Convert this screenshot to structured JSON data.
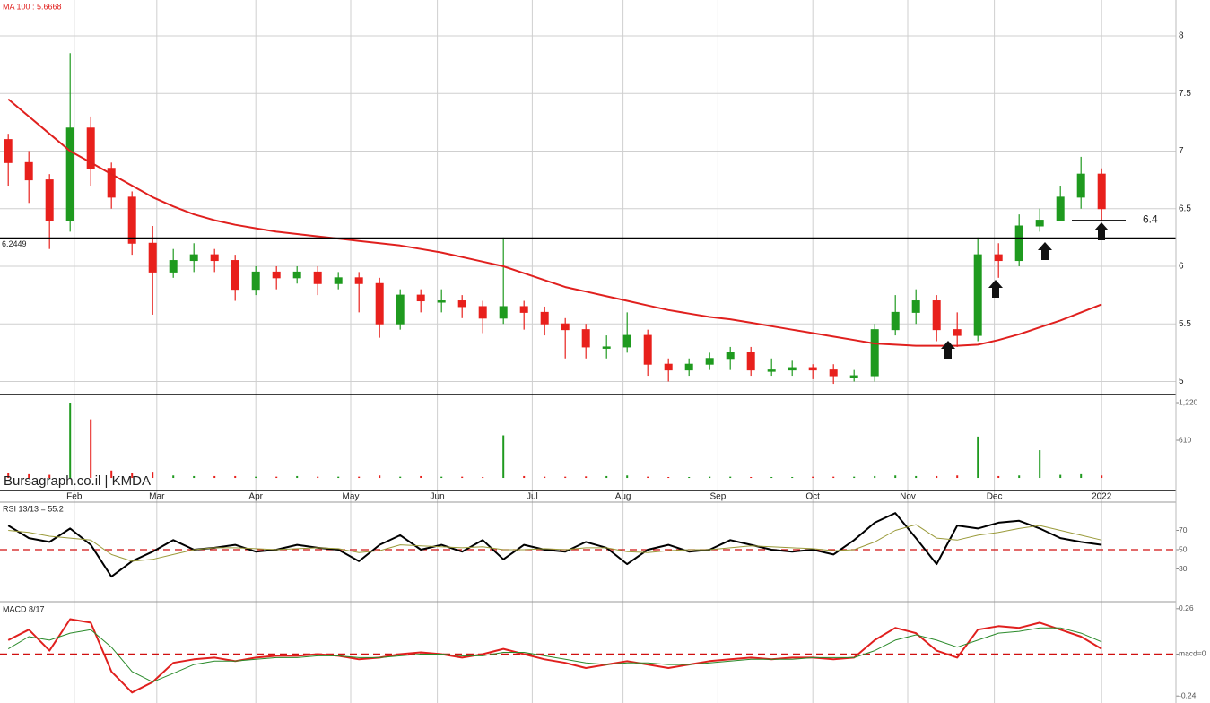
{
  "chart_data": [
    {
      "type": "candlestick",
      "title": "MA 100 : 5.6668",
      "x": [
        2,
        7,
        12,
        17,
        22,
        27,
        32,
        37,
        42,
        47,
        52,
        57,
        62,
        67,
        72,
        77,
        82,
        87,
        92,
        97,
        102,
        107,
        112,
        117,
        122,
        127,
        132,
        137,
        142,
        147,
        152,
        157,
        162,
        167,
        172,
        177,
        182,
        187,
        192,
        197,
        202,
        207,
        212,
        217,
        222,
        227,
        232,
        237,
        242,
        247,
        252,
        257,
        262,
        267
      ],
      "open": [
        7.1,
        6.9,
        6.75,
        6.4,
        7.2,
        6.85,
        6.6,
        6.2,
        5.95,
        6.05,
        6.1,
        6.05,
        5.8,
        5.95,
        5.9,
        5.95,
        5.85,
        5.9,
        5.85,
        5.5,
        5.75,
        5.7,
        5.7,
        5.65,
        5.55,
        5.65,
        5.6,
        5.5,
        5.45,
        5.3,
        5.3,
        5.4,
        5.15,
        5.1,
        5.15,
        5.2,
        5.25,
        5.1,
        5.1,
        5.12,
        5.1,
        5.05,
        5.05,
        5.45,
        5.6,
        5.7,
        5.45,
        5.4,
        6.1,
        6.05,
        6.35,
        6.4,
        6.6,
        6.8
      ],
      "high": [
        7.15,
        7.0,
        6.8,
        7.85,
        7.3,
        6.9,
        6.65,
        6.35,
        6.15,
        6.2,
        6.15,
        6.1,
        6.0,
        6.0,
        6.0,
        6.0,
        5.95,
        5.95,
        5.9,
        5.8,
        5.8,
        5.8,
        5.75,
        5.7,
        6.25,
        5.7,
        5.65,
        5.55,
        5.5,
        5.4,
        5.6,
        5.45,
        5.2,
        5.2,
        5.25,
        5.3,
        5.3,
        5.2,
        5.18,
        5.15,
        5.15,
        5.1,
        5.5,
        5.75,
        5.8,
        5.75,
        5.6,
        6.25,
        6.2,
        6.45,
        6.5,
        6.7,
        6.95,
        6.85
      ],
      "low": [
        6.7,
        6.55,
        6.15,
        6.3,
        6.7,
        6.5,
        6.1,
        5.58,
        5.9,
        5.95,
        5.95,
        5.7,
        5.75,
        5.8,
        5.85,
        5.75,
        5.8,
        5.6,
        5.38,
        5.45,
        5.6,
        5.6,
        5.55,
        5.42,
        5.5,
        5.45,
        5.4,
        5.2,
        5.2,
        5.2,
        5.25,
        5.05,
        5.0,
        5.05,
        5.1,
        5.1,
        5.05,
        5.05,
        5.05,
        5.02,
        4.98,
        5.0,
        5.0,
        5.4,
        5.5,
        5.35,
        5.3,
        5.35,
        5.9,
        6.0,
        6.3,
        6.4,
        6.5,
        6.4
      ],
      "close": [
        6.9,
        6.75,
        6.4,
        7.2,
        6.85,
        6.6,
        6.2,
        5.95,
        6.05,
        6.1,
        6.05,
        5.8,
        5.95,
        5.9,
        5.95,
        5.85,
        5.9,
        5.85,
        5.5,
        5.75,
        5.7,
        5.7,
        5.65,
        5.55,
        5.65,
        5.6,
        5.5,
        5.45,
        5.3,
        5.3,
        5.4,
        5.15,
        5.1,
        5.15,
        5.2,
        5.25,
        5.1,
        5.1,
        5.12,
        5.1,
        5.05,
        5.05,
        5.45,
        5.6,
        5.7,
        5.45,
        5.4,
        6.1,
        6.05,
        6.35,
        6.4,
        6.6,
        6.8,
        6.5
      ],
      "up_color": "#1f9a1f",
      "down_color": "#e8201c",
      "series": [
        {
          "color": "#e0201e",
          "values": [
            7.45,
            7.3,
            7.15,
            7.0,
            6.9,
            6.8,
            6.7,
            6.6,
            6.52,
            6.45,
            6.4,
            6.36,
            6.33,
            6.3,
            6.28,
            6.26,
            6.24,
            6.22,
            6.2,
            6.18,
            6.15,
            6.12,
            6.08,
            6.04,
            6.0,
            5.94,
            5.88,
            5.82,
            5.78,
            5.74,
            5.7,
            5.66,
            5.62,
            5.59,
            5.56,
            5.54,
            5.51,
            5.48,
            5.45,
            5.42,
            5.39,
            5.36,
            5.33,
            5.32,
            5.31,
            5.31,
            5.31,
            5.32,
            5.36,
            5.41,
            5.47,
            5.53,
            5.6,
            5.67
          ]
        }
      ],
      "hlines": [
        6.2449,
        6.4
      ],
      "xlim": [
        0,
        285
      ],
      "ylim": [
        4.887,
        8.311
      ],
      "yticks": [
        5,
        5.5,
        6,
        6.5,
        7,
        7.5,
        8
      ],
      "grid": true
    },
    {
      "type": "bar",
      "source": "Bursagraph.co.il | KMDA",
      "x": [
        2,
        7,
        12,
        17,
        22,
        27,
        32,
        37,
        42,
        47,
        52,
        57,
        62,
        67,
        72,
        77,
        82,
        87,
        92,
        97,
        102,
        107,
        112,
        117,
        122,
        127,
        132,
        137,
        142,
        147,
        152,
        157,
        162,
        167,
        172,
        177,
        182,
        187,
        192,
        197,
        202,
        207,
        212,
        217,
        222,
        227,
        232,
        237,
        242,
        247,
        252,
        257,
        262,
        267
      ],
      "values": [
        80,
        60,
        50,
        1220,
        950,
        120,
        80,
        100,
        40,
        30,
        30,
        30,
        20,
        20,
        30,
        20,
        20,
        20,
        40,
        20,
        30,
        20,
        20,
        15,
        690,
        30,
        20,
        20,
        25,
        30,
        40,
        20,
        15,
        15,
        20,
        20,
        15,
        15,
        15,
        20,
        20,
        20,
        30,
        40,
        30,
        30,
        40,
        670,
        30,
        40,
        450,
        50,
        60,
        40
      ],
      "xlim": [
        0,
        285
      ],
      "ylim": [
        -203,
        1351
      ],
      "yticks": [
        {
          "value": 1220,
          "label": "1,220"
        },
        610
      ],
      "xticks": [
        {
          "value": 18,
          "label": "Feb"
        },
        {
          "value": 38,
          "label": "Mar"
        },
        {
          "value": 62,
          "label": "Apr"
        },
        {
          "value": 85,
          "label": "May"
        },
        {
          "value": 106,
          "label": "Jun"
        },
        {
          "value": 129,
          "label": "Jul"
        },
        {
          "value": 151,
          "label": "Aug"
        },
        {
          "value": 174,
          "label": "Sep"
        },
        {
          "value": 197,
          "label": "Oct"
        },
        {
          "value": 220,
          "label": "Nov"
        },
        {
          "value": 241,
          "label": "Dec"
        },
        {
          "value": 267,
          "label": "2022"
        }
      ],
      "grid": false
    },
    {
      "type": "line",
      "title": "RSI 13/13 = 55.2",
      "x": [
        2,
        7,
        12,
        17,
        22,
        27,
        32,
        37,
        42,
        47,
        52,
        57,
        62,
        67,
        72,
        77,
        82,
        87,
        92,
        97,
        102,
        107,
        112,
        117,
        122,
        127,
        132,
        137,
        142,
        147,
        152,
        157,
        162,
        167,
        172,
        177,
        182,
        187,
        192,
        197,
        202,
        207,
        212,
        217,
        222,
        227,
        232,
        237,
        242,
        247,
        252,
        257,
        262,
        267
      ],
      "series": [
        {
          "color": "#000000",
          "values": [
            75,
            62,
            58,
            72,
            55,
            22,
            38,
            48,
            60,
            50,
            52,
            55,
            48,
            50,
            55,
            52,
            50,
            38,
            55,
            65,
            50,
            55,
            48,
            60,
            40,
            55,
            50,
            48,
            58,
            52,
            35,
            50,
            55,
            48,
            50,
            60,
            55,
            50,
            48,
            50,
            45,
            60,
            78,
            88,
            62,
            35,
            75,
            72,
            78,
            80,
            72,
            62,
            58,
            55
          ]
        },
        {
          "color": "#9a9a3a",
          "values": [
            70,
            68,
            64,
            62,
            60,
            45,
            38,
            40,
            45,
            50,
            52,
            52,
            51,
            50,
            51,
            52,
            51,
            47,
            49,
            55,
            54,
            53,
            52,
            53,
            50,
            50,
            51,
            50,
            52,
            52,
            48,
            47,
            49,
            50,
            50,
            52,
            54,
            53,
            52,
            51,
            49,
            50,
            58,
            70,
            76,
            62,
            60,
            65,
            68,
            72,
            75,
            70,
            65,
            60
          ]
        }
      ],
      "hline": 50,
      "hline_color": "#d01010",
      "xlim": [
        0,
        285
      ],
      "ylim": [
        -3,
        99.3
      ],
      "yticks": [
        30,
        50,
        70
      ],
      "grid": false
    },
    {
      "type": "line",
      "title": "MACD 8/17",
      "x": [
        2,
        7,
        12,
        17,
        22,
        27,
        32,
        37,
        42,
        47,
        52,
        57,
        62,
        67,
        72,
        77,
        82,
        87,
        92,
        97,
        102,
        107,
        112,
        117,
        122,
        127,
        132,
        137,
        142,
        147,
        152,
        157,
        162,
        167,
        172,
        177,
        182,
        187,
        192,
        197,
        202,
        207,
        212,
        217,
        222,
        227,
        232,
        237,
        242,
        247,
        252,
        257,
        262,
        267
      ],
      "series": [
        {
          "color": "#e0201e",
          "values": [
            0.08,
            0.14,
            0.02,
            0.2,
            0.18,
            -0.1,
            -0.22,
            -0.16,
            -0.05,
            -0.03,
            -0.02,
            -0.04,
            -0.02,
            -0.01,
            -0.01,
            0.0,
            -0.01,
            -0.03,
            -0.02,
            0.0,
            0.01,
            0.0,
            -0.02,
            0.0,
            0.03,
            0.0,
            -0.03,
            -0.05,
            -0.08,
            -0.06,
            -0.04,
            -0.06,
            -0.08,
            -0.06,
            -0.04,
            -0.03,
            -0.02,
            -0.03,
            -0.02,
            -0.02,
            -0.03,
            -0.02,
            0.08,
            0.15,
            0.12,
            0.02,
            -0.02,
            0.14,
            0.16,
            0.15,
            0.18,
            0.14,
            0.1,
            0.03
          ]
        },
        {
          "color": "#2a8a2a",
          "values": [
            0.03,
            0.1,
            0.08,
            0.12,
            0.14,
            0.04,
            -0.1,
            -0.16,
            -0.11,
            -0.06,
            -0.04,
            -0.04,
            -0.03,
            -0.02,
            -0.02,
            -0.01,
            -0.01,
            -0.02,
            -0.02,
            -0.01,
            0.0,
            0.0,
            -0.01,
            -0.01,
            0.01,
            0.01,
            -0.01,
            -0.03,
            -0.05,
            -0.06,
            -0.05,
            -0.05,
            -0.06,
            -0.06,
            -0.05,
            -0.04,
            -0.03,
            -0.03,
            -0.03,
            -0.02,
            -0.02,
            -0.02,
            0.02,
            0.08,
            0.11,
            0.08,
            0.04,
            0.08,
            0.12,
            0.13,
            0.15,
            0.15,
            0.12,
            0.07
          ]
        }
      ],
      "hline": 0,
      "hline_color": "#d01010",
      "xlim": [
        0,
        285
      ],
      "ylim": [
        -0.28,
        0.295
      ],
      "yticks": [
        -0.24,
        {
          "value": 0,
          "label": "macd=0"
        },
        0.26
      ],
      "grid": false
    }
  ]
}
